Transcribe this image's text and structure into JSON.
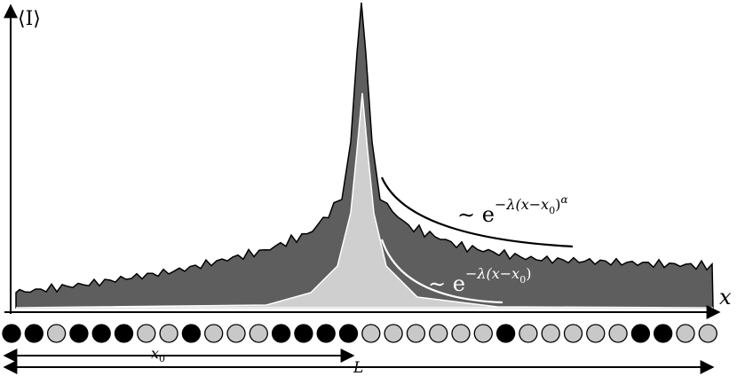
{
  "axis_labels": {
    "y": "⟨I⟩",
    "x": "x"
  },
  "annotations": [
    {
      "base": "∼ e",
      "exponent": [
        "−λ(x−x",
        "0",
        ")",
        "α"
      ]
    },
    {
      "base": "∼ e",
      "exponent": [
        "−λ(x−x",
        "0",
        ")"
      ]
    }
  ],
  "lengths": {
    "x0": {
      "symbol": "x",
      "subscript": "0"
    },
    "L": "L"
  },
  "sites": [
    "black",
    "black",
    "gray",
    "black",
    "black",
    "black",
    "gray",
    "gray",
    "black",
    "gray",
    "gray",
    "gray",
    "black",
    "black",
    "black",
    "black",
    "gray",
    "gray",
    "gray",
    "gray",
    "gray",
    "gray",
    "black",
    "gray",
    "gray",
    "gray",
    "gray",
    "gray",
    "black",
    "black",
    "gray",
    "gray"
  ]
}
